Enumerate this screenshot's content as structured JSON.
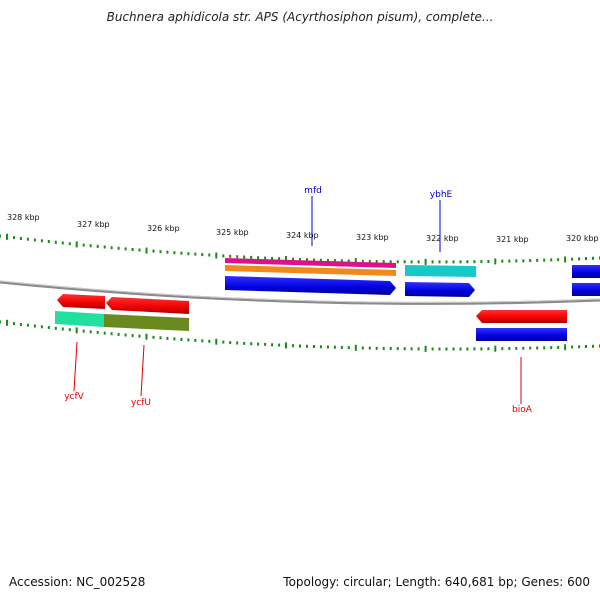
{
  "title": "Buchnera aphidicola str. APS (Acyrthosiphon pisum), complete...",
  "footer": {
    "accession": "Accession: NC_002528",
    "summary": "Topology: circular; Length: 640,681 bp; Genes: 600"
  },
  "kbp_labels": [
    "328 kbp",
    "327 kbp",
    "326 kbp",
    "325 kbp",
    "324 kbp",
    "323 kbp",
    "322 kbp",
    "321 kbp",
    "320 kbp"
  ],
  "gene_labels": [
    {
      "name": "mfd",
      "color": "#0000cc"
    },
    {
      "name": "ybhE",
      "color": "#0000cc"
    },
    {
      "name": "ycfV",
      "color": "#dd0000"
    },
    {
      "name": "ycfU",
      "color": "#dd0000"
    },
    {
      "name": "bioA",
      "color": "#dd0000"
    }
  ],
  "colors": {
    "backbone": "#8a8a8a",
    "tick": "#1a8a1a",
    "forward_cds": "#0000ee",
    "reverse_cds": "#ee0000",
    "magenta": "#e0108a",
    "orange": "#f08a1a",
    "cyan": "#18c8c8",
    "teal": "#20e0a0",
    "olive": "#6a8a20"
  }
}
